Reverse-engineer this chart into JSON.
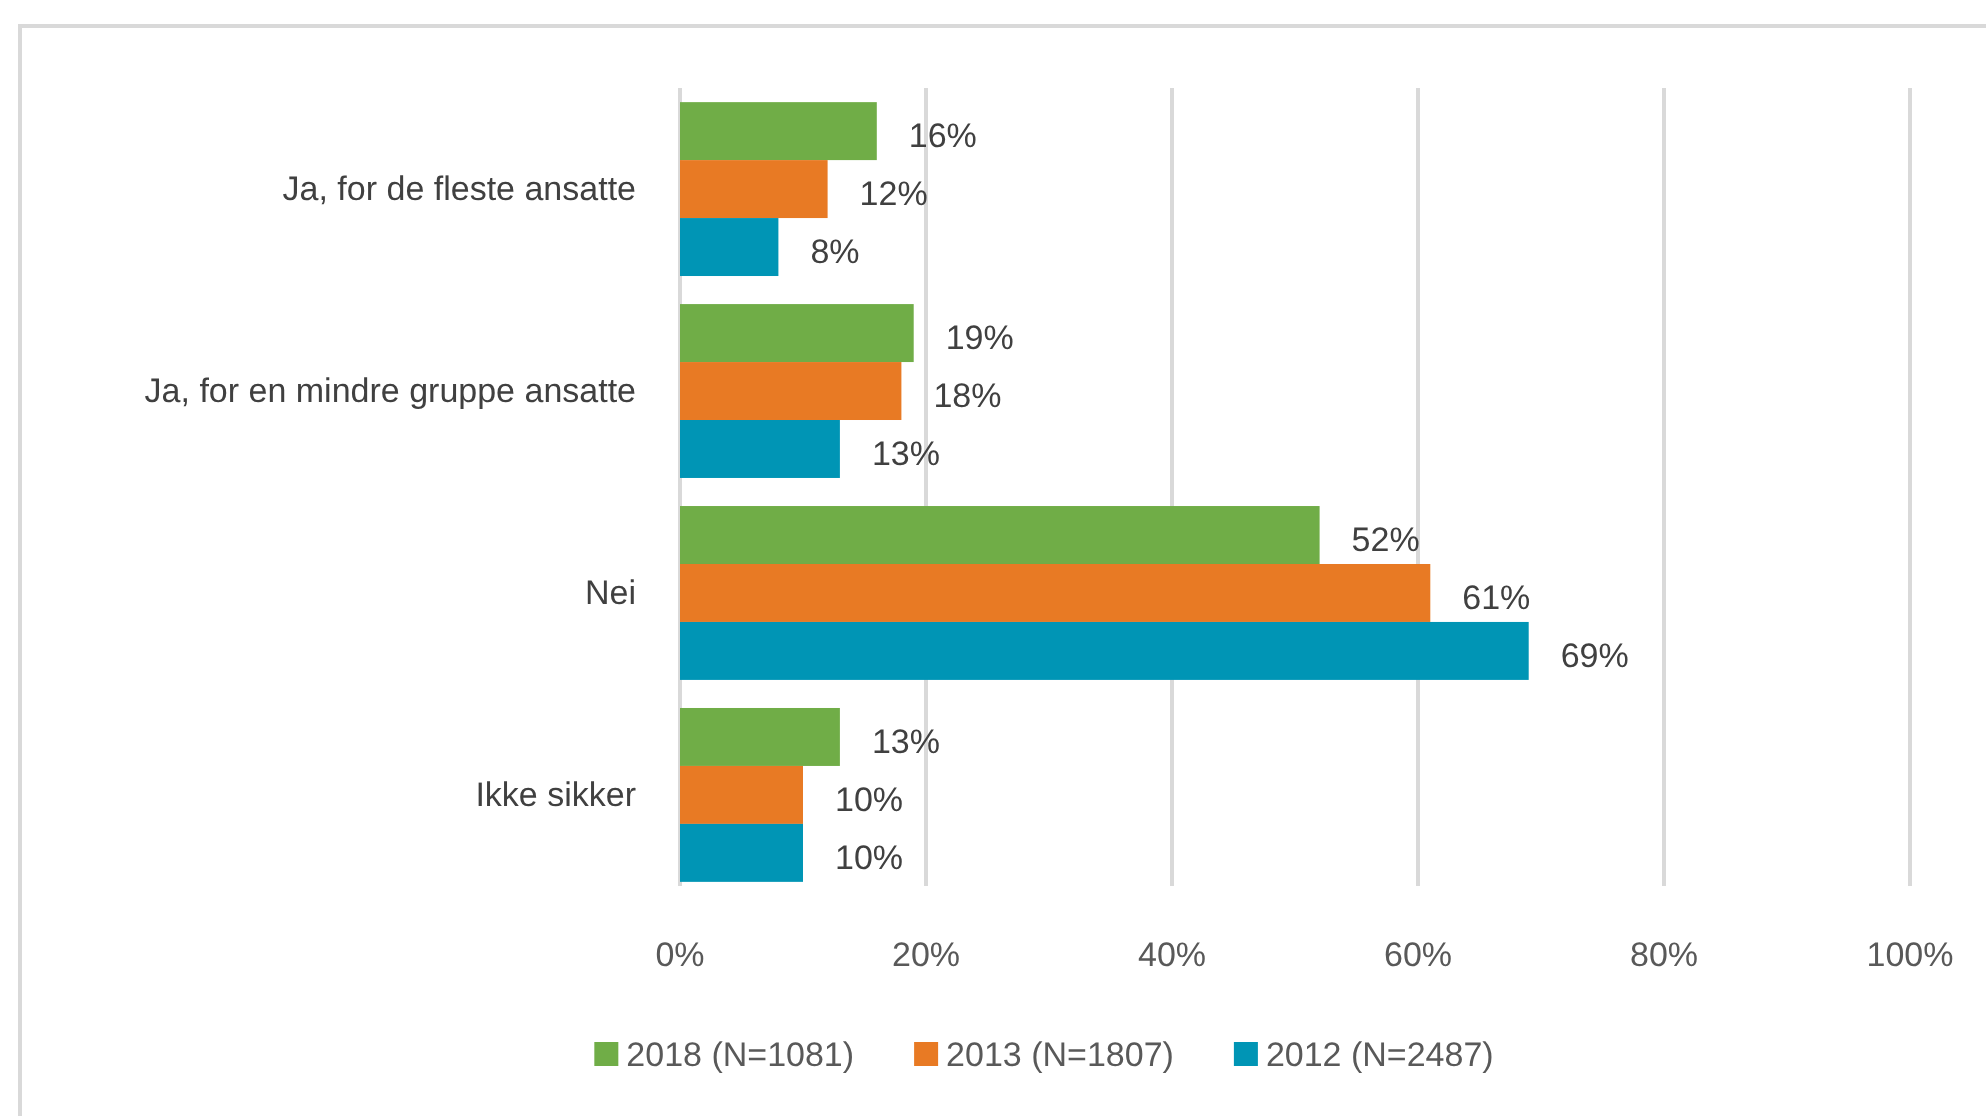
{
  "chart_data": {
    "type": "bar",
    "orientation": "horizontal",
    "categories": [
      "Ja, for de fleste ansatte",
      "Ja, for en mindre gruppe ansatte",
      "Nei",
      "Ikke sikker"
    ],
    "series": [
      {
        "name": "2018 (N=1081)",
        "color": "#70ad47",
        "values": [
          16,
          19,
          52,
          13
        ],
        "value_labels": [
          "16%",
          "19%",
          "52%",
          "13%"
        ]
      },
      {
        "name": "2013 (N=1807)",
        "color": "#e87a24",
        "values": [
          12,
          18,
          61,
          10
        ],
        "value_labels": [
          "12%",
          "18%",
          "61%",
          "10%"
        ]
      },
      {
        "name": "2012 (N=2487)",
        "color": "#0095b5",
        "values": [
          8,
          13,
          69,
          10
        ],
        "value_labels": [
          "8%",
          "13%",
          "69%",
          "10%"
        ]
      }
    ],
    "xlim": [
      0,
      100
    ],
    "xticks": [
      {
        "value": 0,
        "label": "0%"
      },
      {
        "value": 20,
        "label": "20%"
      },
      {
        "value": 40,
        "label": "40%"
      },
      {
        "value": 60,
        "label": "60%"
      },
      {
        "value": 80,
        "label": "80%"
      },
      {
        "value": 100,
        "label": "100%"
      }
    ],
    "grid": "x",
    "legend": "bottom"
  }
}
